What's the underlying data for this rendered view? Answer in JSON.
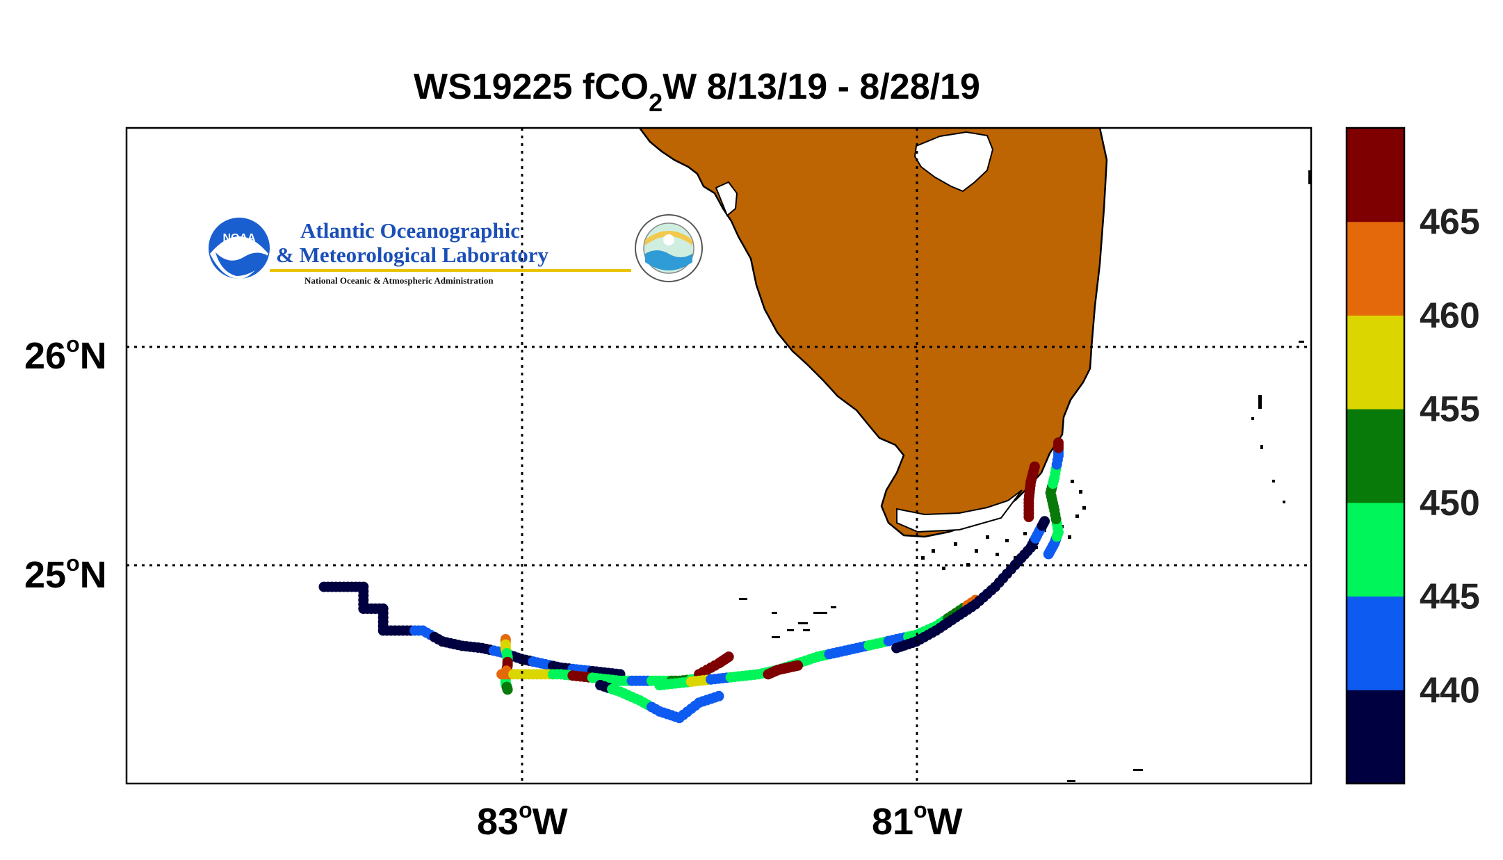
{
  "map": {
    "title_main": "WS19225 fCO",
    "title_subscript": "2",
    "title_rest": "W 8/13/19 - 8/28/19",
    "lat_labels": [
      {
        "value": "26",
        "unit": "o",
        "hemi": "N"
      },
      {
        "value": "25",
        "unit": "o",
        "hemi": "N"
      }
    ],
    "lon_labels": [
      {
        "value": "83",
        "unit": "o",
        "hemi": "W"
      },
      {
        "value": "81",
        "unit": "o",
        "hemi": "W"
      }
    ],
    "land_color": "#bd6403",
    "extent": {
      "lon_min": -85.0,
      "lon_max": -79.0,
      "lat_min": 24.0,
      "lat_max": 27.0
    }
  },
  "logo": {
    "line1": "Atlantic Oceanographic",
    "line2": "& Meteorological Laboratory",
    "line3": "National Oceanic & Atmospheric Administration",
    "badge": "NOAA"
  },
  "colorbar": {
    "colors": [
      "#000040",
      "#0d5bf0",
      "#00f55a",
      "#087a0a",
      "#dcd600",
      "#e3690a",
      "#7e0000"
    ],
    "tick_labels": [
      "440",
      "445",
      "450",
      "455",
      "460",
      "465"
    ],
    "range": [
      435,
      470
    ]
  },
  "track": {
    "value_range": [
      435,
      470
    ],
    "segments": [
      {
        "points": [
          [
            -84.0,
            24.9
          ],
          [
            -83.9,
            24.9
          ],
          [
            -83.8,
            24.9
          ],
          [
            -83.8,
            24.8
          ],
          [
            -83.7,
            24.8
          ],
          [
            -83.7,
            24.7
          ],
          [
            -83.6,
            24.7
          ],
          [
            -83.5,
            24.7
          ],
          [
            -83.4,
            24.65
          ],
          [
            -83.3,
            24.63
          ],
          [
            -83.2,
            24.62
          ],
          [
            -83.1,
            24.6
          ],
          [
            -83.0,
            24.57
          ],
          [
            -82.9,
            24.55
          ],
          [
            -82.8,
            24.53
          ],
          [
            -82.7,
            24.52
          ],
          [
            -82.6,
            24.51
          ],
          [
            -82.5,
            24.5
          ]
        ],
        "values": [
          436,
          436,
          436,
          436,
          436,
          437,
          436,
          441,
          436,
          437,
          436,
          442,
          436,
          443,
          436,
          441,
          436,
          437
        ]
      },
      {
        "points": [
          [
            -83.08,
            24.66
          ],
          [
            -83.08,
            24.62
          ],
          [
            -83.07,
            24.58
          ],
          [
            -83.07,
            24.54
          ],
          [
            -83.08,
            24.5
          ],
          [
            -83.08,
            24.46
          ],
          [
            -83.07,
            24.43
          ]
        ],
        "values": [
          464,
          457,
          449,
          466,
          462,
          448,
          452
        ]
      },
      {
        "points": [
          [
            -83.1,
            24.5
          ],
          [
            -83.0,
            24.5
          ],
          [
            -82.9,
            24.5
          ],
          [
            -82.8,
            24.5
          ],
          [
            -82.7,
            24.49
          ],
          [
            -82.6,
            24.48
          ],
          [
            -82.5,
            24.47
          ],
          [
            -82.4,
            24.47
          ],
          [
            -82.3,
            24.47
          ],
          [
            -82.2,
            24.47
          ],
          [
            -82.1,
            24.48
          ]
        ],
        "values": [
          463,
          457,
          456,
          447,
          465,
          446,
          447,
          444,
          448,
          452,
          445
        ]
      },
      {
        "points": [
          [
            -82.6,
            24.45
          ],
          [
            -82.5,
            24.42
          ],
          [
            -82.4,
            24.38
          ],
          [
            -82.3,
            24.33
          ],
          [
            -82.2,
            24.3
          ],
          [
            -82.1,
            24.37
          ],
          [
            -82.0,
            24.4
          ]
        ],
        "values": [
          437,
          448,
          446,
          444,
          442,
          441,
          442
        ]
      },
      {
        "points": [
          [
            -82.1,
            24.5
          ],
          [
            -82.0,
            24.55
          ],
          [
            -81.95,
            24.58
          ]
        ],
        "values": [
          468,
          468,
          468
        ]
      },
      {
        "points": [
          [
            -82.3,
            24.45
          ],
          [
            -82.2,
            24.46
          ],
          [
            -82.1,
            24.47
          ],
          [
            -82.0,
            24.48
          ],
          [
            -81.9,
            24.49
          ],
          [
            -81.8,
            24.5
          ],
          [
            -81.7,
            24.52
          ],
          [
            -81.6,
            24.55
          ],
          [
            -81.5,
            24.58
          ],
          [
            -81.4,
            24.6
          ],
          [
            -81.3,
            24.62
          ],
          [
            -81.2,
            24.64
          ],
          [
            -81.1,
            24.66
          ],
          [
            -81.0,
            24.68
          ],
          [
            -80.9,
            24.72
          ],
          [
            -80.8,
            24.78
          ],
          [
            -80.7,
            24.84
          ]
        ],
        "values": [
          448,
          446,
          455,
          444,
          448,
          446,
          447,
          448,
          445,
          441,
          442,
          448,
          442,
          446,
          449,
          452,
          462
        ]
      },
      {
        "points": [
          [
            -81.75,
            24.5
          ],
          [
            -81.7,
            24.52
          ],
          [
            -81.65,
            24.53
          ],
          [
            -81.6,
            24.54
          ]
        ],
        "values": [
          468,
          468,
          468,
          468
        ]
      },
      {
        "points": [
          [
            -81.1,
            24.62
          ],
          [
            -81.0,
            24.65
          ],
          [
            -80.9,
            24.7
          ],
          [
            -80.8,
            24.76
          ],
          [
            -80.7,
            24.82
          ],
          [
            -80.6,
            24.9
          ],
          [
            -80.5,
            25.0
          ],
          [
            -80.42,
            25.08
          ],
          [
            -80.38,
            25.15
          ],
          [
            -80.35,
            25.2
          ]
        ],
        "values": [
          436,
          437,
          436,
          436,
          437,
          436,
          437,
          436,
          441,
          437
        ]
      },
      {
        "points": [
          [
            -80.4,
            25.45
          ],
          [
            -80.42,
            25.38
          ],
          [
            -80.43,
            25.3
          ],
          [
            -80.43,
            25.22
          ]
        ],
        "values": [
          468,
          468,
          468,
          468
        ]
      },
      {
        "points": [
          [
            -80.33,
            25.05
          ],
          [
            -80.3,
            25.1
          ],
          [
            -80.28,
            25.15
          ],
          [
            -80.3,
            25.25
          ],
          [
            -80.32,
            25.33
          ],
          [
            -80.3,
            25.4
          ],
          [
            -80.28,
            25.5
          ],
          [
            -80.28,
            25.56
          ]
        ],
        "values": [
          441,
          441,
          445,
          451,
          452,
          448,
          444,
          468
        ]
      }
    ]
  }
}
